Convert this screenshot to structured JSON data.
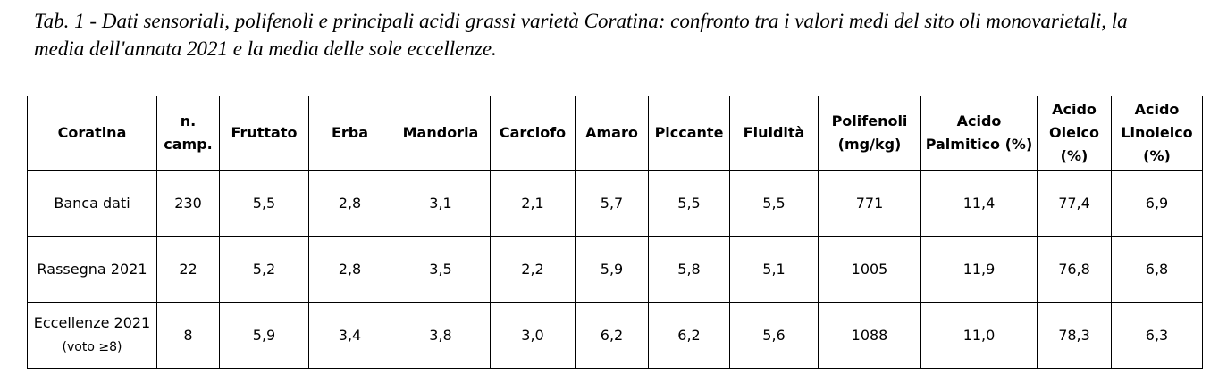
{
  "header": {
    "title": "Tab. 1 - Dati sensoriali, polifenoli e principali acidi grassi varietà Coratina: confronto tra i valori medi del sito oli monovarietali, la media dell'annata 2021 e la media delle sole eccellenze."
  },
  "table": {
    "columns": [
      "Coratina",
      "n. camp.",
      "Fruttato",
      "Erba",
      "Mandorla",
      "Carciofo",
      "Amaro",
      "Piccante",
      "Fluidità",
      "Polifenoli (mg/kg)",
      "Acido Palmitico (%)",
      "Acido Oleico (%)",
      "Acido Linoleico (%)"
    ],
    "rows": [
      {
        "label": "Banca dati",
        "values": [
          "230",
          "5,5",
          "2,8",
          "3,1",
          "2,1",
          "5,7",
          "5,5",
          "5,5",
          "771",
          "11,4",
          "77,4",
          "6,9"
        ]
      },
      {
        "label": "Rassegna 2021",
        "values": [
          "22",
          "5,2",
          "2,8",
          "3,5",
          "2,2",
          "5,9",
          "5,8",
          "5,1",
          "1005",
          "11,9",
          "76,8",
          "6,8"
        ]
      },
      {
        "label": "Eccellenze 2021",
        "note": "(voto ≥8)",
        "values": [
          "8",
          "5,9",
          "3,4",
          "3,8",
          "3,0",
          "6,2",
          "6,2",
          "5,6",
          "1088",
          "11,0",
          "78,3",
          "6,3"
        ]
      }
    ]
  }
}
